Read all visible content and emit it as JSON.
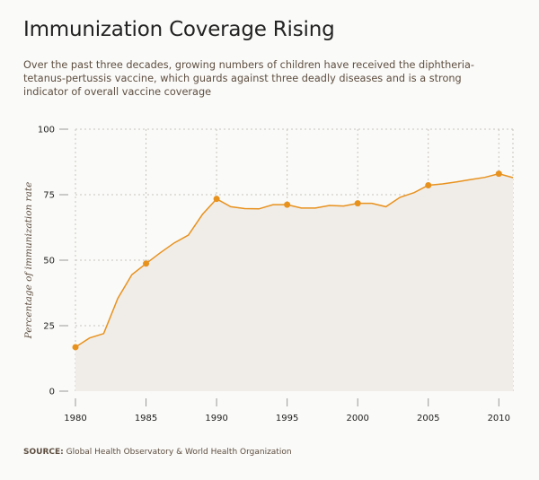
{
  "header": {
    "title": "Immunization Coverage Rising",
    "subtitle": "Over the past three decades, growing numbers of children have received the diphtheria-tetanus-pertussis vaccine, which guards against three deadly diseases and is a strong indicator of overall vaccine coverage"
  },
  "footer": {
    "source_label": "SOURCE:",
    "source_text": " Global Health Observatory & World Health Organization"
  },
  "chart_data": {
    "type": "area",
    "title": "Immunization Coverage Rising",
    "xlabel": "",
    "ylabel": "Percentage of immunization rate",
    "xlim": [
      1980,
      2011
    ],
    "ylim": [
      0,
      100
    ],
    "x_ticks": [
      1980,
      1985,
      1990,
      1995,
      2000,
      2005,
      2010
    ],
    "y_ticks": [
      0,
      25,
      50,
      75,
      100
    ],
    "grid": true,
    "marker_every": 5,
    "colors": {
      "line": "#e8921e",
      "fill": "#f0ece7",
      "grid": "#c8c4bf"
    },
    "x": [
      1980,
      1981,
      1982,
      1983,
      1984,
      1985,
      1986,
      1987,
      1988,
      1989,
      1990,
      1991,
      1992,
      1993,
      1994,
      1995,
      1996,
      1997,
      1998,
      1999,
      2000,
      2001,
      2002,
      2003,
      2004,
      2005,
      2006,
      2007,
      2008,
      2009,
      2010,
      2011
    ],
    "values": [
      16.8,
      20.3,
      22,
      35.4,
      44.5,
      48.7,
      52.8,
      56.6,
      59.6,
      67.5,
      73.4,
      70.4,
      69.7,
      69.6,
      71.2,
      71.2,
      69.9,
      69.9,
      70.9,
      70.7,
      71.7,
      71.7,
      70.4,
      74,
      75.8,
      78.6,
      79.1,
      79.9,
      80.8,
      81.6,
      83,
      81.5
    ]
  }
}
